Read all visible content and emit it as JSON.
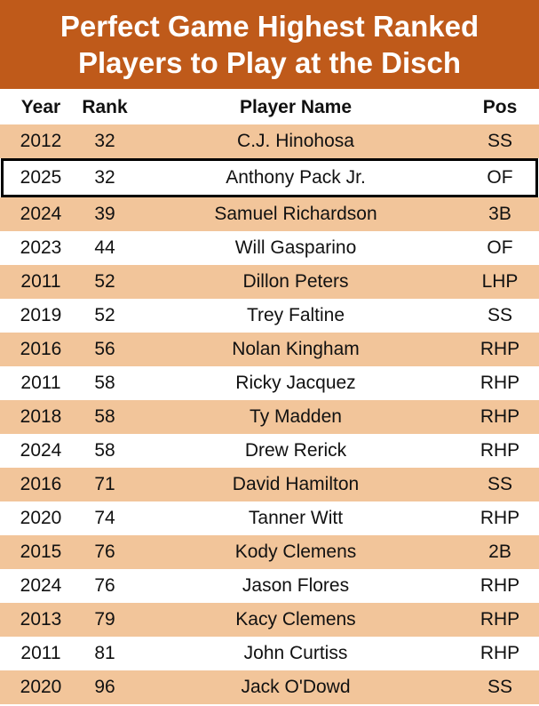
{
  "title": [
    "Perfect Game Highest Ranked",
    "Players to Play at the Disch"
  ],
  "table": {
    "header": [
      "Year",
      "Rank",
      "Player Name",
      "Pos"
    ],
    "rows": [
      [
        2012,
        32,
        "C.J. Hinohosa",
        "SS"
      ],
      [
        2025,
        32,
        "Anthony Pack Jr.",
        "OF"
      ],
      [
        2024,
        39,
        "Samuel Richardson",
        "3B"
      ],
      [
        2023,
        44,
        "Will Gasparino",
        "OF"
      ],
      [
        2011,
        52,
        "Dillon Peters",
        "LHP"
      ],
      [
        2019,
        52,
        "Trey Faltine",
        "SS"
      ],
      [
        2016,
        56,
        "Nolan Kingham",
        "RHP"
      ],
      [
        2011,
        58,
        "Ricky Jacquez",
        "RHP"
      ],
      [
        2018,
        58,
        "Ty Madden",
        "RHP"
      ],
      [
        2024,
        58,
        "Drew Rerick",
        "RHP"
      ],
      [
        2016,
        71,
        "David Hamilton",
        "SS"
      ],
      [
        2020,
        74,
        "Tanner Witt",
        "RHP"
      ],
      [
        2015,
        76,
        "Kody Clemens",
        "2B"
      ],
      [
        2024,
        76,
        "Jason Flores",
        "RHP"
      ],
      [
        2013,
        79,
        "Kacy Clemens",
        "RHP"
      ],
      [
        2011,
        81,
        "John Curtiss",
        "RHP"
      ],
      [
        2020,
        96,
        "Jack O'Dowd",
        "SS"
      ]
    ]
  }
}
